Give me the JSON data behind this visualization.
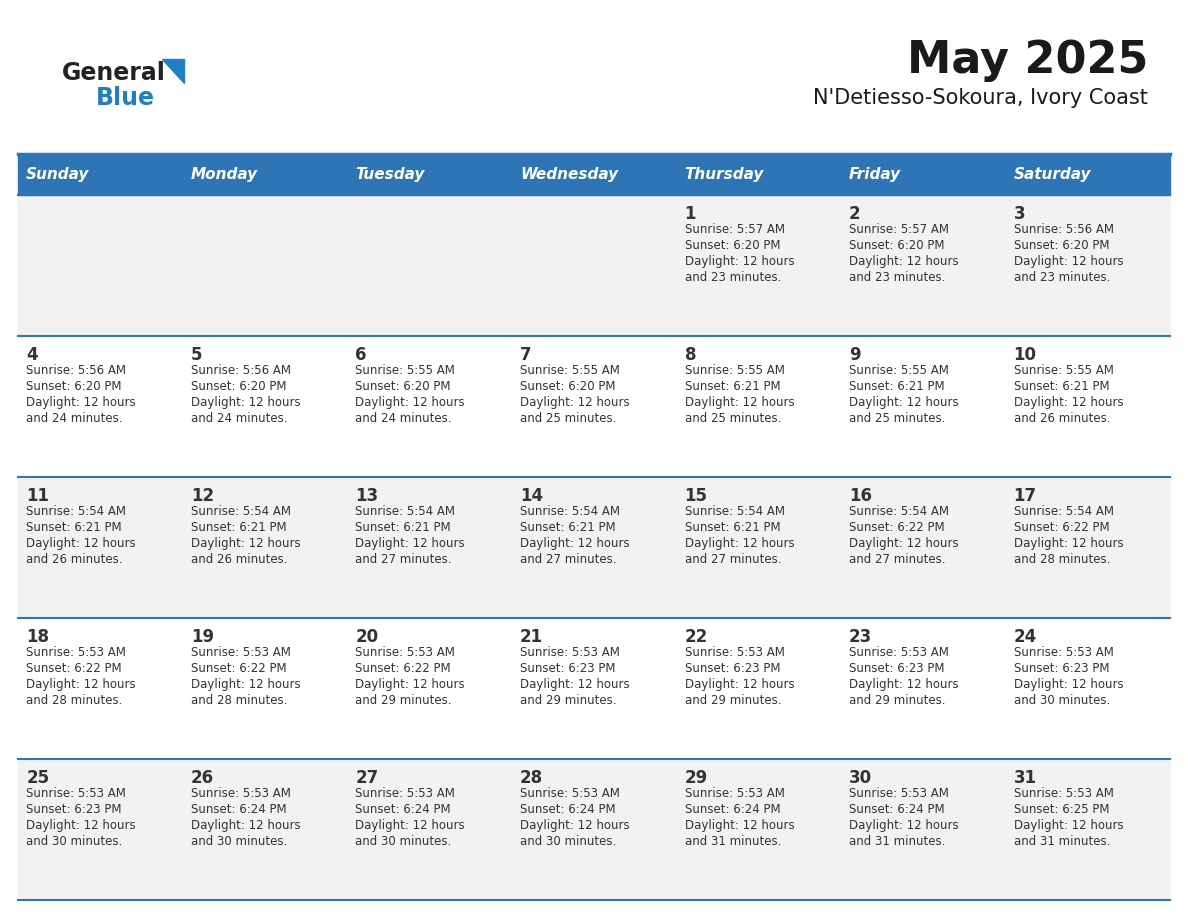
{
  "title": "May 2025",
  "subtitle": "N'Detiesso-Sokoura, Ivory Coast",
  "days_of_week": [
    "Sunday",
    "Monday",
    "Tuesday",
    "Wednesday",
    "Thursday",
    "Friday",
    "Saturday"
  ],
  "header_bg": "#2E75B6",
  "header_text": "#FFFFFF",
  "cell_bg_odd": "#F2F2F2",
  "cell_bg_even": "#FFFFFF",
  "day_num_color": "#333333",
  "text_color": "#333333",
  "divider_color": "#2E75B6",
  "logo_general_color": "#222222",
  "logo_blue_color": "#1E7FC2",
  "calendar_data": [
    [
      null,
      null,
      null,
      null,
      {
        "day": 1,
        "sunrise": "5:57 AM",
        "sunset": "6:20 PM",
        "daylight": "12 hours and 23 minutes"
      },
      {
        "day": 2,
        "sunrise": "5:57 AM",
        "sunset": "6:20 PM",
        "daylight": "12 hours and 23 minutes"
      },
      {
        "day": 3,
        "sunrise": "5:56 AM",
        "sunset": "6:20 PM",
        "daylight": "12 hours and 23 minutes"
      }
    ],
    [
      {
        "day": 4,
        "sunrise": "5:56 AM",
        "sunset": "6:20 PM",
        "daylight": "12 hours and 24 minutes"
      },
      {
        "day": 5,
        "sunrise": "5:56 AM",
        "sunset": "6:20 PM",
        "daylight": "12 hours and 24 minutes"
      },
      {
        "day": 6,
        "sunrise": "5:55 AM",
        "sunset": "6:20 PM",
        "daylight": "12 hours and 24 minutes"
      },
      {
        "day": 7,
        "sunrise": "5:55 AM",
        "sunset": "6:20 PM",
        "daylight": "12 hours and 25 minutes"
      },
      {
        "day": 8,
        "sunrise": "5:55 AM",
        "sunset": "6:21 PM",
        "daylight": "12 hours and 25 minutes"
      },
      {
        "day": 9,
        "sunrise": "5:55 AM",
        "sunset": "6:21 PM",
        "daylight": "12 hours and 25 minutes"
      },
      {
        "day": 10,
        "sunrise": "5:55 AM",
        "sunset": "6:21 PM",
        "daylight": "12 hours and 26 minutes"
      }
    ],
    [
      {
        "day": 11,
        "sunrise": "5:54 AM",
        "sunset": "6:21 PM",
        "daylight": "12 hours and 26 minutes"
      },
      {
        "day": 12,
        "sunrise": "5:54 AM",
        "sunset": "6:21 PM",
        "daylight": "12 hours and 26 minutes"
      },
      {
        "day": 13,
        "sunrise": "5:54 AM",
        "sunset": "6:21 PM",
        "daylight": "12 hours and 27 minutes"
      },
      {
        "day": 14,
        "sunrise": "5:54 AM",
        "sunset": "6:21 PM",
        "daylight": "12 hours and 27 minutes"
      },
      {
        "day": 15,
        "sunrise": "5:54 AM",
        "sunset": "6:21 PM",
        "daylight": "12 hours and 27 minutes"
      },
      {
        "day": 16,
        "sunrise": "5:54 AM",
        "sunset": "6:22 PM",
        "daylight": "12 hours and 27 minutes"
      },
      {
        "day": 17,
        "sunrise": "5:54 AM",
        "sunset": "6:22 PM",
        "daylight": "12 hours and 28 minutes"
      }
    ],
    [
      {
        "day": 18,
        "sunrise": "5:53 AM",
        "sunset": "6:22 PM",
        "daylight": "12 hours and 28 minutes"
      },
      {
        "day": 19,
        "sunrise": "5:53 AM",
        "sunset": "6:22 PM",
        "daylight": "12 hours and 28 minutes"
      },
      {
        "day": 20,
        "sunrise": "5:53 AM",
        "sunset": "6:22 PM",
        "daylight": "12 hours and 29 minutes"
      },
      {
        "day": 21,
        "sunrise": "5:53 AM",
        "sunset": "6:23 PM",
        "daylight": "12 hours and 29 minutes"
      },
      {
        "day": 22,
        "sunrise": "5:53 AM",
        "sunset": "6:23 PM",
        "daylight": "12 hours and 29 minutes"
      },
      {
        "day": 23,
        "sunrise": "5:53 AM",
        "sunset": "6:23 PM",
        "daylight": "12 hours and 29 minutes"
      },
      {
        "day": 24,
        "sunrise": "5:53 AM",
        "sunset": "6:23 PM",
        "daylight": "12 hours and 30 minutes"
      }
    ],
    [
      {
        "day": 25,
        "sunrise": "5:53 AM",
        "sunset": "6:23 PM",
        "daylight": "12 hours and 30 minutes"
      },
      {
        "day": 26,
        "sunrise": "5:53 AM",
        "sunset": "6:24 PM",
        "daylight": "12 hours and 30 minutes"
      },
      {
        "day": 27,
        "sunrise": "5:53 AM",
        "sunset": "6:24 PM",
        "daylight": "12 hours and 30 minutes"
      },
      {
        "day": 28,
        "sunrise": "5:53 AM",
        "sunset": "6:24 PM",
        "daylight": "12 hours and 30 minutes"
      },
      {
        "day": 29,
        "sunrise": "5:53 AM",
        "sunset": "6:24 PM",
        "daylight": "12 hours and 31 minutes"
      },
      {
        "day": 30,
        "sunrise": "5:53 AM",
        "sunset": "6:24 PM",
        "daylight": "12 hours and 31 minutes"
      },
      {
        "day": 31,
        "sunrise": "5:53 AM",
        "sunset": "6:25 PM",
        "daylight": "12 hours and 31 minutes"
      }
    ]
  ]
}
